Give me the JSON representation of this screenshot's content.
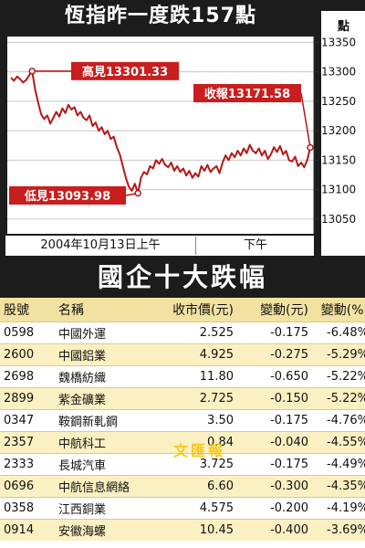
{
  "header": {
    "title": "恆指昨一度跌157點",
    "unit": "點"
  },
  "chart_data": {
    "type": "line",
    "ylim": [
      13025,
      13360
    ],
    "yticks": [
      13350,
      13300,
      13250,
      13200,
      13150,
      13100,
      13050
    ],
    "x_labels": [
      "2004年10月13日上午",
      "下午"
    ],
    "annotations": {
      "high": {
        "label": "高見13301.33",
        "x": 7,
        "y": 13301.33
      },
      "low": {
        "label": "低見13093.98",
        "x": 42,
        "y": 13093.98
      },
      "close": {
        "label": "收報13171.58",
        "x": 99,
        "y": 13171.58
      }
    },
    "colors": {
      "line": "#b51818",
      "label_bg": "#c81e1e",
      "grid": "#c8c8c8"
    },
    "points": [
      [
        0,
        13290
      ],
      [
        1,
        13285
      ],
      [
        2,
        13292
      ],
      [
        3,
        13288
      ],
      [
        4,
        13282
      ],
      [
        5,
        13286
      ],
      [
        6,
        13294
      ],
      [
        7,
        13301.33
      ],
      [
        8,
        13270
      ],
      [
        9,
        13248
      ],
      [
        10,
        13228
      ],
      [
        11,
        13220
      ],
      [
        12,
        13226
      ],
      [
        13,
        13212
      ],
      [
        14,
        13222
      ],
      [
        15,
        13232
      ],
      [
        16,
        13224
      ],
      [
        17,
        13238
      ],
      [
        18,
        13230
      ],
      [
        19,
        13244
      ],
      [
        20,
        13236
      ],
      [
        21,
        13240
      ],
      [
        22,
        13226
      ],
      [
        23,
        13232
      ],
      [
        24,
        13222
      ],
      [
        25,
        13218
      ],
      [
        26,
        13226
      ],
      [
        27,
        13208
      ],
      [
        28,
        13214
      ],
      [
        29,
        13200
      ],
      [
        30,
        13206
      ],
      [
        31,
        13194
      ],
      [
        32,
        13200
      ],
      [
        33,
        13186
      ],
      [
        34,
        13190
      ],
      [
        35,
        13172
      ],
      [
        36,
        13160
      ],
      [
        37,
        13140
      ],
      [
        38,
        13120
      ],
      [
        39,
        13105
      ],
      [
        40,
        13098
      ],
      [
        41,
        13110
      ],
      [
        42,
        13093.98
      ],
      [
        43,
        13120
      ],
      [
        44,
        13130
      ],
      [
        45,
        13126
      ],
      [
        46,
        13140
      ],
      [
        47,
        13136
      ],
      [
        48,
        13150
      ],
      [
        49,
        13144
      ],
      [
        50,
        13152
      ],
      [
        51,
        13142
      ],
      [
        52,
        13138
      ],
      [
        53,
        13146
      ],
      [
        54,
        13132
      ],
      [
        55,
        13140
      ],
      [
        56,
        13130
      ],
      [
        57,
        13136
      ],
      [
        58,
        13124
      ],
      [
        59,
        13132
      ],
      [
        60,
        13120
      ],
      [
        61,
        13128
      ],
      [
        62,
        13122
      ],
      [
        63,
        13140
      ],
      [
        64,
        13132
      ],
      [
        65,
        13142
      ],
      [
        66,
        13130
      ],
      [
        67,
        13136
      ],
      [
        68,
        13140
      ],
      [
        69,
        13128
      ],
      [
        70,
        13146
      ],
      [
        71,
        13158
      ],
      [
        72,
        13150
      ],
      [
        73,
        13162
      ],
      [
        74,
        13155
      ],
      [
        75,
        13166
      ],
      [
        76,
        13158
      ],
      [
        77,
        13170
      ],
      [
        78,
        13162
      ],
      [
        79,
        13176
      ],
      [
        80,
        13166
      ],
      [
        81,
        13162
      ],
      [
        82,
        13170
      ],
      [
        83,
        13158
      ],
      [
        84,
        13166
      ],
      [
        85,
        13152
      ],
      [
        86,
        13160
      ],
      [
        87,
        13172
      ],
      [
        88,
        13164
      ],
      [
        89,
        13174
      ],
      [
        90,
        13160
      ],
      [
        91,
        13166
      ],
      [
        92,
        13150
      ],
      [
        93,
        13148
      ],
      [
        94,
        13156
      ],
      [
        95,
        13140
      ],
      [
        96,
        13146
      ],
      [
        97,
        13138
      ],
      [
        98,
        13150
      ],
      [
        99,
        13171.58
      ]
    ]
  },
  "table": {
    "title": "國企十大跌幅",
    "headers": {
      "code": "股號",
      "name": "名稱",
      "close": "收市價(元)",
      "change": "變動(元)",
      "pct": "變動(%)"
    },
    "rows": [
      {
        "code": "0598",
        "name": "中國外運",
        "close": "2.525",
        "change": "-0.175",
        "pct": "-6.48%"
      },
      {
        "code": "2600",
        "name": "中國鋁業",
        "close": "4.925",
        "change": "-0.275",
        "pct": "-5.29%"
      },
      {
        "code": "2698",
        "name": "魏橋紡織",
        "close": "11.80",
        "change": "-0.650",
        "pct": "-5.22%"
      },
      {
        "code": "2899",
        "name": "紫金礦業",
        "close": "2.725",
        "change": "-0.150",
        "pct": "-5.22%"
      },
      {
        "code": "0347",
        "name": "鞍鋼新軋鋼",
        "close": "3.50",
        "change": "-0.175",
        "pct": "-4.76%"
      },
      {
        "code": "2357",
        "name": "中航科工",
        "close": "0.84",
        "change": "-0.040",
        "pct": "-4.55%"
      },
      {
        "code": "2333",
        "name": "長城汽車",
        "close": "3.725",
        "change": "-0.175",
        "pct": "-4.49%"
      },
      {
        "code": "0696",
        "name": "中航信息網絡",
        "close": "6.60",
        "change": "-0.300",
        "pct": "-4.35%"
      },
      {
        "code": "0358",
        "name": "江西銅業",
        "close": "4.575",
        "change": "-0.200",
        "pct": "-4.19%"
      },
      {
        "code": "0914",
        "name": "安徽海螺",
        "close": "10.45",
        "change": "-0.400",
        "pct": "-3.69%"
      }
    ]
  },
  "watermark": "文匯報"
}
